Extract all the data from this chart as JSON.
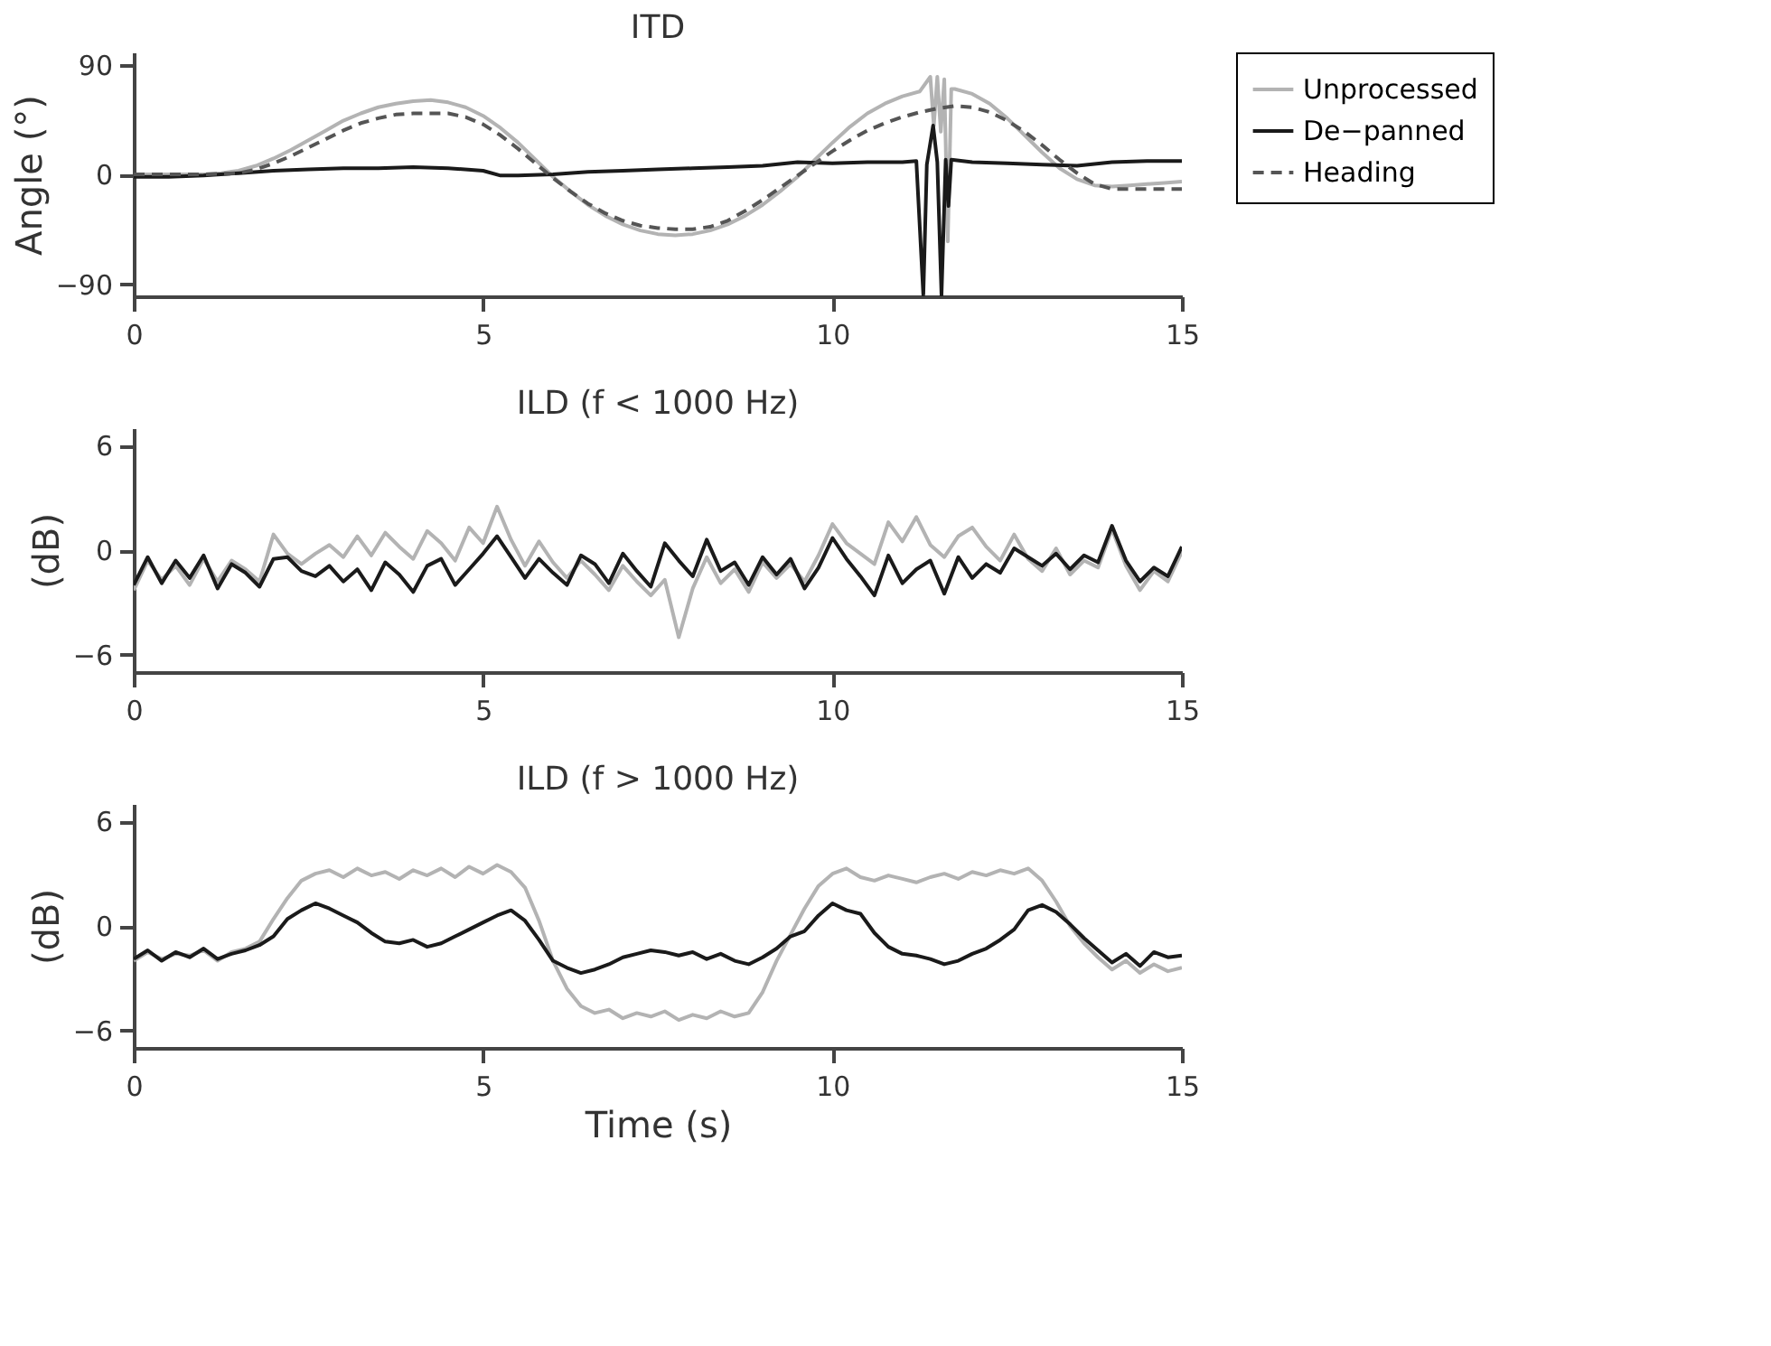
{
  "chart_data": [
    {
      "type": "line",
      "title": "ITD",
      "ylabel": "Angle (°)",
      "xlim": [
        0,
        15
      ],
      "xticks": [
        0,
        5,
        10,
        15
      ],
      "ylim": [
        -100,
        100
      ],
      "yticks": [
        -90,
        0,
        90
      ],
      "grid": false,
      "legend": "right",
      "series": [
        {
          "name": "Unprocessed",
          "color": "#b3b3b3",
          "line_style": "solid",
          "x": [
            0,
            0.25,
            0.5,
            0.75,
            1,
            1.25,
            1.5,
            1.75,
            2,
            2.25,
            2.5,
            2.75,
            3,
            3.25,
            3.5,
            3.75,
            4,
            4.25,
            4.5,
            4.75,
            5,
            5.25,
            5.5,
            5.75,
            6,
            6.25,
            6.5,
            6.75,
            7,
            7.25,
            7.5,
            7.75,
            8,
            8.25,
            8.5,
            8.75,
            9,
            9.25,
            9.5,
            9.75,
            10,
            10.25,
            10.5,
            10.75,
            11,
            11.25,
            11.4,
            11.45,
            11.5,
            11.55,
            11.6,
            11.65,
            11.7,
            11.75,
            12,
            12.25,
            12.5,
            12.75,
            13,
            13.25,
            13.5,
            13.75,
            14,
            14.25,
            14.5,
            14.75,
            15
          ],
          "values": [
            0,
            0,
            0,
            0,
            0,
            1,
            3,
            7,
            13,
            20,
            28,
            36,
            44,
            50,
            55,
            58,
            60,
            61,
            59,
            55,
            48,
            38,
            26,
            12,
            -2,
            -14,
            -25,
            -34,
            -41,
            -46,
            -49,
            -50,
            -49,
            -46,
            -41,
            -34,
            -25,
            -14,
            -2,
            12,
            26,
            39,
            50,
            58,
            64,
            68,
            80,
            40,
            80,
            35,
            78,
            -55,
            70,
            70,
            66,
            58,
            46,
            32,
            18,
            5,
            -4,
            -9,
            -10,
            -9,
            -8,
            -7,
            -6
          ]
        },
        {
          "name": "De−panned",
          "color": "#1a1a1a",
          "line_style": "solid",
          "x": [
            0,
            0.5,
            1,
            1.5,
            2,
            2.5,
            3,
            3.5,
            4,
            4.5,
            5,
            5.25,
            5.5,
            6,
            6.5,
            7,
            7.5,
            8,
            8.5,
            9,
            9.5,
            10,
            10.5,
            11,
            11.2,
            11.3,
            11.35,
            11.44,
            11.5,
            11.56,
            11.62,
            11.66,
            11.7,
            12,
            12.5,
            13,
            13.5,
            14,
            14.5,
            15
          ],
          "values": [
            -2,
            -2,
            -1,
            1,
            3,
            4,
            5,
            5,
            6,
            5,
            3,
            -1,
            -1,
            0,
            2,
            3,
            4,
            5,
            6,
            7,
            10,
            9,
            10,
            10,
            11,
            -99,
            8,
            40,
            10,
            -99,
            12,
            -26,
            12,
            10,
            9,
            8,
            7,
            10,
            11,
            11
          ]
        },
        {
          "name": "Heading",
          "color": "#555555",
          "line_style": "dashed",
          "x": [
            0,
            0.5,
            1,
            1.5,
            1.75,
            2,
            2.25,
            2.5,
            2.75,
            3,
            3.25,
            3.5,
            3.75,
            4,
            4.25,
            4.5,
            4.75,
            5,
            5.25,
            5.5,
            5.75,
            6,
            6.25,
            6.5,
            6.75,
            7,
            7.25,
            7.5,
            7.75,
            8,
            8.25,
            8.5,
            8.75,
            9,
            9.25,
            9.5,
            9.75,
            10,
            10.25,
            10.5,
            10.75,
            11,
            11.25,
            11.5,
            11.75,
            12,
            12.25,
            12.5,
            12.75,
            13,
            13.25,
            13.5,
            13.75,
            14,
            14.5,
            15
          ],
          "values": [
            0,
            0,
            0,
            1,
            4,
            9,
            15,
            22,
            29,
            36,
            42,
            46,
            49,
            50,
            50,
            50,
            47,
            41,
            32,
            21,
            9,
            -3,
            -14,
            -24,
            -32,
            -38,
            -42,
            -44,
            -45,
            -45,
            -43,
            -38,
            -30,
            -21,
            -11,
            -1,
            9,
            19,
            28,
            36,
            42,
            47,
            51,
            54,
            56,
            55,
            51,
            44,
            35,
            24,
            12,
            1,
            -8,
            -12,
            -12,
            -12
          ]
        }
      ]
    },
    {
      "type": "line",
      "title": "ILD (f < 1000 Hz)",
      "ylabel": "(dB)",
      "xlim": [
        0,
        15
      ],
      "xticks": [
        0,
        5,
        10,
        15
      ],
      "ylim": [
        -7,
        7
      ],
      "yticks": [
        -6,
        0,
        6
      ],
      "grid": false,
      "legend": "right",
      "x": [
        0,
        0.2,
        0.4,
        0.6,
        0.8,
        1,
        1.2,
        1.4,
        1.6,
        1.8,
        2,
        2.2,
        2.4,
        2.6,
        2.8,
        3,
        3.2,
        3.4,
        3.6,
        3.8,
        4,
        4.2,
        4.4,
        4.6,
        4.8,
        5,
        5.2,
        5.4,
        5.6,
        5.8,
        6,
        6.2,
        6.4,
        6.6,
        6.8,
        7,
        7.2,
        7.4,
        7.6,
        7.8,
        8,
        8.2,
        8.4,
        8.6,
        8.8,
        9,
        9.2,
        9.4,
        9.6,
        9.8,
        10,
        10.2,
        10.4,
        10.6,
        10.8,
        11,
        11.2,
        11.4,
        11.6,
        11.8,
        12,
        12.2,
        12.4,
        12.6,
        12.8,
        13,
        13.2,
        13.4,
        13.6,
        13.8,
        14,
        14.2,
        14.4,
        14.6,
        14.8,
        15
      ],
      "series": [
        {
          "name": "Unprocessed",
          "color": "#b3b3b3",
          "line_style": "solid",
          "values": [
            -2.3,
            -0.6,
            -1.7,
            -0.9,
            -2.0,
            -0.5,
            -1.8,
            -0.6,
            -1.1,
            -1.8,
            0.9,
            -0.2,
            -0.8,
            -0.2,
            0.3,
            -0.4,
            0.8,
            -0.3,
            1.0,
            0.2,
            -0.5,
            1.1,
            0.4,
            -0.6,
            1.3,
            0.4,
            2.5,
            0.6,
            -0.9,
            0.5,
            -0.7,
            -1.6,
            -0.6,
            -1.4,
            -2.3,
            -0.9,
            -1.8,
            -2.6,
            -1.7,
            -5.0,
            -2.2,
            -0.4,
            -1.9,
            -1.1,
            -2.4,
            -0.7,
            -1.6,
            -0.8,
            -1.8,
            -0.3,
            1.5,
            0.4,
            -0.2,
            -0.8,
            1.6,
            0.5,
            1.9,
            0.3,
            -0.4,
            0.8,
            1.3,
            0.2,
            -0.6,
            0.9,
            -0.5,
            -1.2,
            0.1,
            -1.4,
            -0.6,
            -1.0,
            1.2,
            -0.9,
            -2.3,
            -1.2,
            -1.8,
            -0.1
          ]
        },
        {
          "name": "De−panned",
          "color": "#1a1a1a",
          "line_style": "solid",
          "values": [
            -2.0,
            -0.4,
            -1.9,
            -0.6,
            -1.6,
            -0.3,
            -2.2,
            -0.8,
            -1.3,
            -2.1,
            -0.5,
            -0.4,
            -1.2,
            -1.5,
            -0.9,
            -1.8,
            -1.1,
            -2.3,
            -0.7,
            -1.4,
            -2.4,
            -0.9,
            -0.5,
            -2.0,
            -1.1,
            -0.2,
            0.8,
            -0.4,
            -1.6,
            -0.5,
            -1.3,
            -2.0,
            -0.3,
            -0.8,
            -1.9,
            -0.2,
            -1.2,
            -2.1,
            0.4,
            -0.6,
            -1.5,
            0.6,
            -1.2,
            -0.7,
            -2.0,
            -0.4,
            -1.4,
            -0.5,
            -2.2,
            -1.0,
            0.7,
            -0.5,
            -1.5,
            -2.6,
            -0.3,
            -1.9,
            -1.1,
            -0.6,
            -2.5,
            -0.4,
            -1.6,
            -0.8,
            -1.3,
            0.1,
            -0.4,
            -0.9,
            -0.2,
            -1.1,
            -0.3,
            -0.7,
            1.4,
            -0.6,
            -1.8,
            -1.0,
            -1.5,
            0.2
          ]
        }
      ]
    },
    {
      "type": "line",
      "title": "ILD (f > 1000 Hz)",
      "ylabel": "(dB)",
      "xlabel": "Time (s)",
      "xlim": [
        0,
        15
      ],
      "xticks": [
        0,
        5,
        10,
        15
      ],
      "ylim": [
        -7,
        7
      ],
      "yticks": [
        -6,
        0,
        6
      ],
      "grid": false,
      "legend": "right",
      "x": [
        0,
        0.2,
        0.4,
        0.6,
        0.8,
        1,
        1.2,
        1.4,
        1.6,
        1.8,
        2,
        2.2,
        2.4,
        2.6,
        2.8,
        3,
        3.2,
        3.4,
        3.6,
        3.8,
        4,
        4.2,
        4.4,
        4.6,
        4.8,
        5,
        5.2,
        5.4,
        5.6,
        5.8,
        6,
        6.2,
        6.4,
        6.6,
        6.8,
        7,
        7.2,
        7.4,
        7.6,
        7.8,
        8,
        8.2,
        8.4,
        8.6,
        8.8,
        9,
        9.2,
        9.4,
        9.6,
        9.8,
        10,
        10.2,
        10.4,
        10.6,
        10.8,
        11,
        11.2,
        11.4,
        11.6,
        11.8,
        12,
        12.2,
        12.4,
        12.6,
        12.8,
        13,
        13.2,
        13.4,
        13.6,
        13.8,
        14,
        14.2,
        14.4,
        14.6,
        14.8,
        15
      ],
      "series": [
        {
          "name": "Unprocessed",
          "color": "#b3b3b3",
          "line_style": "solid",
          "values": [
            -2.0,
            -1.5,
            -1.9,
            -1.6,
            -1.7,
            -1.4,
            -2.0,
            -1.5,
            -1.3,
            -0.9,
            0.4,
            1.6,
            2.6,
            3.0,
            3.2,
            2.8,
            3.3,
            2.9,
            3.1,
            2.7,
            3.2,
            2.9,
            3.3,
            2.8,
            3.4,
            3.0,
            3.5,
            3.1,
            2.2,
            0.3,
            -2.0,
            -3.6,
            -4.6,
            -5.0,
            -4.8,
            -5.3,
            -5.0,
            -5.2,
            -4.9,
            -5.4,
            -5.1,
            -5.3,
            -4.9,
            -5.2,
            -5.0,
            -3.8,
            -2.0,
            -0.5,
            1.0,
            2.3,
            3.0,
            3.3,
            2.8,
            2.6,
            2.9,
            2.7,
            2.5,
            2.8,
            3.0,
            2.7,
            3.1,
            2.9,
            3.2,
            3.0,
            3.3,
            2.6,
            1.4,
            0.0,
            -1.0,
            -1.8,
            -2.5,
            -2.0,
            -2.7,
            -2.2,
            -2.6,
            -2.4
          ]
        },
        {
          "name": "De−panned",
          "color": "#1a1a1a",
          "line_style": "solid",
          "values": [
            -1.9,
            -1.4,
            -2.0,
            -1.5,
            -1.8,
            -1.3,
            -1.9,
            -1.6,
            -1.4,
            -1.1,
            -0.6,
            0.4,
            0.9,
            1.3,
            1.0,
            0.6,
            0.2,
            -0.4,
            -0.9,
            -1.0,
            -0.8,
            -1.2,
            -1.0,
            -0.6,
            -0.2,
            0.2,
            0.6,
            0.9,
            0.3,
            -0.8,
            -2.0,
            -2.4,
            -2.7,
            -2.5,
            -2.2,
            -1.8,
            -1.6,
            -1.4,
            -1.5,
            -1.7,
            -1.5,
            -1.9,
            -1.6,
            -2.0,
            -2.2,
            -1.8,
            -1.3,
            -0.6,
            -0.3,
            0.6,
            1.3,
            0.9,
            0.7,
            -0.4,
            -1.2,
            -1.6,
            -1.7,
            -1.9,
            -2.2,
            -2.0,
            -1.6,
            -1.3,
            -0.8,
            -0.2,
            0.9,
            1.2,
            0.8,
            0.1,
            -0.7,
            -1.4,
            -2.1,
            -1.6,
            -2.3,
            -1.5,
            -1.8,
            -1.7
          ]
        }
      ]
    }
  ]
}
